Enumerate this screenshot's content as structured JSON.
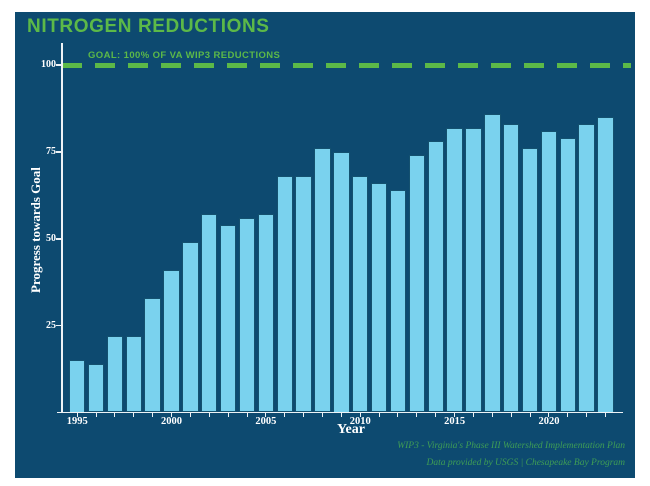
{
  "page": {
    "title": "NITROGEN REDUCTIONS",
    "goal_label": "GOAL: 100% OF VA WIP3 REDUCTIONS",
    "footnote_line1": "WIP3 - Virginia's Phase III Watershed Implementation Plan",
    "footnote_line2": "Data provided by USGS | Chesapeake Bay Program"
  },
  "colors": {
    "background": "#0d4a70",
    "bar_fill": "#7ad2ee",
    "bar_edge": "#14516f",
    "accent_green": "#5cb948",
    "footnote_green": "#3f9e55",
    "axis_white": "#eef3f6",
    "label_white": "#ffffff"
  },
  "chart_data": {
    "type": "bar",
    "title": "NITROGEN REDUCTIONS",
    "xlabel": "Year",
    "ylabel": "Progress towards Goal",
    "ylim": [
      0,
      100
    ],
    "yticks": [
      25,
      50,
      75,
      100
    ],
    "xticks_labeled": [
      1995,
      2000,
      2005,
      2010,
      2015,
      2020
    ],
    "grid": false,
    "legend": null,
    "goal_line": {
      "value": 100,
      "label": "GOAL: 100% OF VA WIP3 REDUCTIONS",
      "style": "dashed",
      "color": "#5cb948"
    },
    "categories": [
      1995,
      1996,
      1997,
      1998,
      1999,
      2000,
      2001,
      2002,
      2003,
      2004,
      2005,
      2006,
      2007,
      2008,
      2009,
      2010,
      2011,
      2012,
      2013,
      2014,
      2015,
      2016,
      2017,
      2018,
      2019,
      2020,
      2021,
      2022,
      2023
    ],
    "values": [
      15,
      14,
      22,
      22,
      33,
      41,
      49,
      57,
      54,
      56,
      57,
      68,
      68,
      76,
      75,
      68,
      66,
      64,
      74,
      78,
      82,
      82,
      86,
      83,
      76,
      81,
      79,
      83,
      85
    ]
  }
}
